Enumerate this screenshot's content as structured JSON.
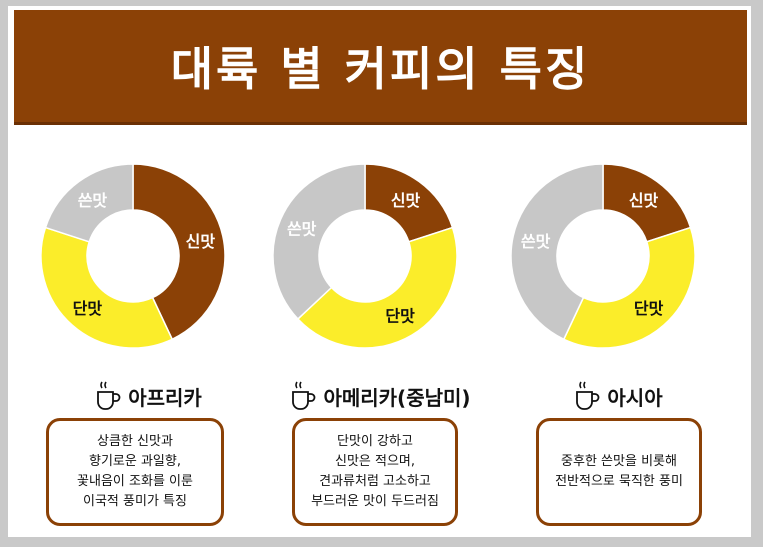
{
  "title": "대륙 별 커피의 특징",
  "colors": {
    "header": "#8b4106",
    "sour": "#8b4106",
    "sweet": "#fbed2a",
    "bitter": "#c7c7c7"
  },
  "chart_data": [
    {
      "type": "pie",
      "region": "아프리카",
      "slices": [
        {
          "label": "신맛",
          "value": 43,
          "color": "#8b4106"
        },
        {
          "label": "단맛",
          "value": 37,
          "color": "#fbed2a"
        },
        {
          "label": "쓴맛",
          "value": 20,
          "color": "#c7c7c7"
        }
      ],
      "description": "상큼한 신맛과\n향기로운 과일향,\n꽃내음이 조화를 이룬\n이국적 풍미가 특징"
    },
    {
      "type": "pie",
      "region": "아메리카(중남미)",
      "slices": [
        {
          "label": "신맛",
          "value": 20,
          "color": "#8b4106"
        },
        {
          "label": "단맛",
          "value": 43,
          "color": "#fbed2a"
        },
        {
          "label": "쓴맛",
          "value": 37,
          "color": "#c7c7c7"
        }
      ],
      "description": "단맛이 강하고\n신맛은 적으며,\n견과류처럼 고소하고\n부드러운 맛이 두드러짐"
    },
    {
      "type": "pie",
      "region": "아시아",
      "slices": [
        {
          "label": "신맛",
          "value": 20,
          "color": "#8b4106"
        },
        {
          "label": "단맛",
          "value": 37,
          "color": "#fbed2a"
        },
        {
          "label": "쓴맛",
          "value": 43,
          "color": "#c7c7c7"
        }
      ],
      "description": "중후한 쓴맛을 비롯해\n전반적으로 묵직한 풍미"
    }
  ]
}
